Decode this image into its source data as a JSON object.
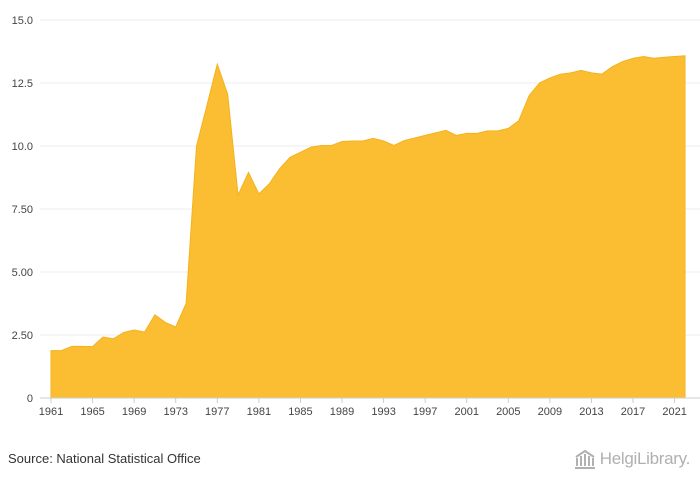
{
  "chart_data": {
    "type": "area",
    "title": "",
    "xlabel": "",
    "ylabel": "",
    "x": [
      1961,
      1962,
      1963,
      1964,
      1965,
      1966,
      1967,
      1968,
      1969,
      1970,
      1971,
      1972,
      1973,
      1974,
      1975,
      1976,
      1977,
      1978,
      1979,
      1980,
      1981,
      1982,
      1983,
      1984,
      1985,
      1986,
      1987,
      1988,
      1989,
      1990,
      1991,
      1992,
      1993,
      1994,
      1995,
      1996,
      1997,
      1998,
      1999,
      2000,
      2001,
      2002,
      2003,
      2004,
      2005,
      2006,
      2007,
      2008,
      2009,
      2010,
      2011,
      2012,
      2013,
      2014,
      2015,
      2016,
      2017,
      2018,
      2019,
      2020,
      2021,
      2022
    ],
    "values": [
      1.88,
      1.88,
      2.05,
      2.05,
      2.04,
      2.42,
      2.35,
      2.6,
      2.7,
      2.62,
      3.3,
      3.0,
      2.82,
      3.75,
      10.0,
      11.6,
      13.25,
      12.05,
      8.05,
      8.95,
      8.1,
      8.5,
      9.1,
      9.55,
      9.75,
      9.95,
      10.02,
      10.02,
      10.18,
      10.2,
      10.2,
      10.3,
      10.2,
      10.02,
      10.22,
      10.32,
      10.42,
      10.52,
      10.62,
      10.42,
      10.5,
      10.5,
      10.6,
      10.6,
      10.7,
      11.0,
      12.0,
      12.5,
      12.7,
      12.85,
      12.9,
      13.0,
      12.9,
      12.85,
      13.15,
      13.35,
      13.48,
      13.55,
      13.48,
      13.52,
      13.55,
      13.58
    ],
    "ylim": [
      0,
      15
    ],
    "y_ticks": [
      0,
      2.5,
      5,
      7.5,
      10,
      12.5,
      15
    ],
    "y_tick_labels": [
      "0",
      "2.50",
      "5.00",
      "7.50",
      "10.0",
      "12.5",
      "15.0"
    ],
    "x_tick_labels": [
      "1961",
      "1965",
      "1969",
      "1973",
      "1977",
      "1981",
      "1985",
      "1989",
      "1993",
      "1997",
      "2001",
      "2005",
      "2009",
      "2013",
      "2017",
      "2021"
    ],
    "grid": true,
    "legend": "none",
    "fill_color": "#fbbd32",
    "edge_color": "#f4b21e"
  },
  "footer": {
    "source": "Source: National Statistical Office",
    "brand": "HelgiLibrary."
  }
}
